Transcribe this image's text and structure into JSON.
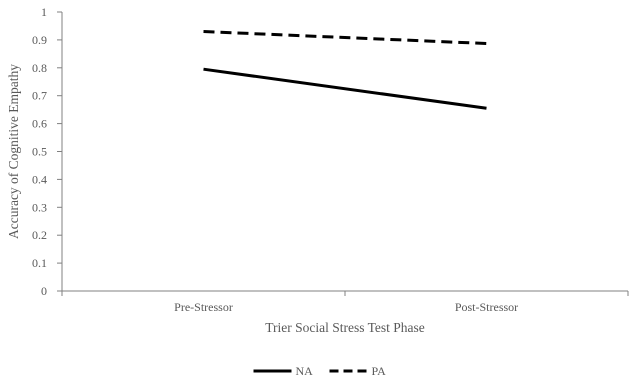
{
  "chart_data": {
    "type": "line",
    "categories": [
      "Pre-Stressor",
      "Post-Stressor"
    ],
    "series": [
      {
        "name": "NA",
        "values": [
          0.795,
          0.655
        ],
        "style": "solid",
        "color": "#000000"
      },
      {
        "name": "PA",
        "values": [
          0.93,
          0.887
        ],
        "style": "dashed",
        "color": "#000000"
      }
    ],
    "xlabel": "Trier Social Stress Test Phase",
    "ylabel": "Accuracy of Cognitive Empathy",
    "ylim": [
      0,
      1
    ],
    "yticks": [
      "0",
      "0.1",
      "0.2",
      "0.3",
      "0.4",
      "0.5",
      "0.6",
      "0.7",
      "0.8",
      "0.9",
      "1"
    ],
    "grid": false,
    "legend": "bottom"
  }
}
